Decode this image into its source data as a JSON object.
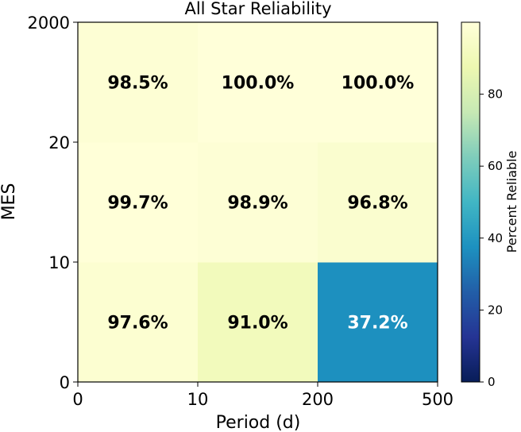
{
  "chart_data": {
    "type": "heatmap",
    "title": "All Star Reliability",
    "xlabel": "Period (d)",
    "ylabel": "MES",
    "x_ticks": [
      "0",
      "10",
      "200",
      "500"
    ],
    "y_ticks": [
      "0",
      "10",
      "20",
      "2000"
    ],
    "x_bins": [
      "0-10",
      "10-200",
      "200-500"
    ],
    "y_bins": [
      "0-10",
      "10-20",
      "20-2000"
    ],
    "values": [
      [
        97.6,
        91.0,
        37.2
      ],
      [
        99.7,
        98.9,
        96.8
      ],
      [
        98.5,
        100.0,
        100.0
      ]
    ],
    "cell_labels": [
      [
        "97.6%",
        "91.0%",
        "37.2%"
      ],
      [
        "99.7%",
        "98.9%",
        "96.8%"
      ],
      [
        "98.5%",
        "100.0%",
        "100.0%"
      ]
    ],
    "colorbar": {
      "label": "Percent Reliable",
      "ticks": [
        "0",
        "20",
        "40",
        "60",
        "80"
      ],
      "tick_values": [
        0,
        20,
        40,
        60,
        80
      ],
      "range": [
        0,
        100
      ],
      "colormap": "YlGnBu"
    },
    "grid": false
  }
}
